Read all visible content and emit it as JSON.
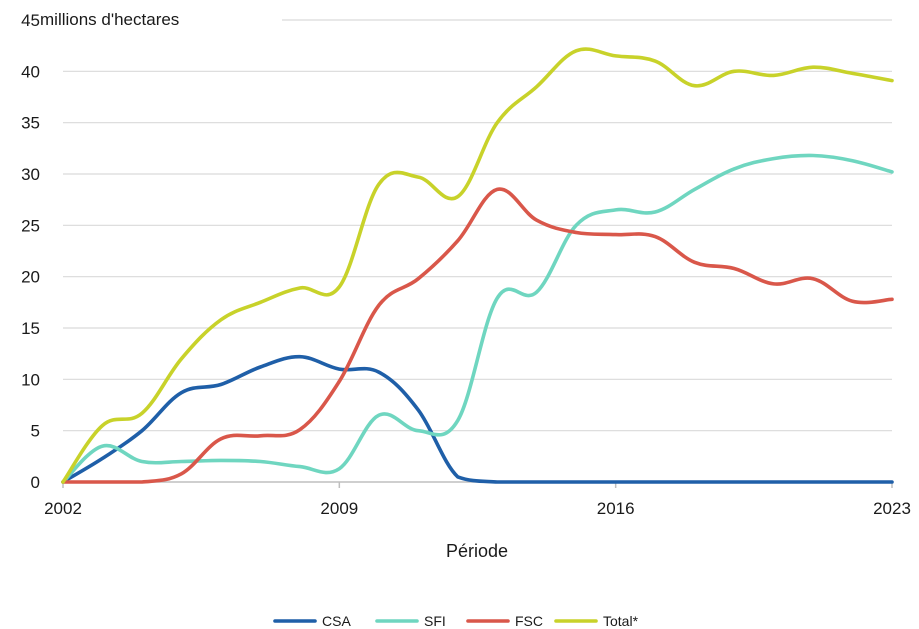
{
  "chart_data": {
    "type": "line",
    "unit_label": "millions d'hectares",
    "xlabel": "Période",
    "ylabel": "",
    "ylim": [
      0,
      45
    ],
    "yticks": [
      0,
      5,
      10,
      15,
      20,
      25,
      30,
      35,
      40,
      45
    ],
    "xlim": [
      2002,
      2023
    ],
    "xticks": [
      2002,
      2009,
      2016,
      2023
    ],
    "grid": true,
    "legend_position": "bottom",
    "x": [
      2002,
      2003,
      2004,
      2005,
      2006,
      2007,
      2008,
      2009,
      2010,
      2011,
      2012,
      2013,
      2014,
      2015,
      2016,
      2017,
      2018,
      2019,
      2020,
      2021,
      2022,
      2023
    ],
    "series": [
      {
        "name": "CSA",
        "color": "#1f5fa8",
        "values": [
          0,
          2.3,
          5.0,
          8.7,
          9.5,
          11.2,
          12.2,
          11.0,
          10.7,
          7.0,
          0.5,
          0,
          0,
          0,
          0,
          0,
          0,
          0,
          0,
          0,
          0,
          0
        ]
      },
      {
        "name": "SFI",
        "color": "#6fd6c0",
        "values": [
          0,
          3.5,
          2.0,
          2.0,
          2.1,
          2.0,
          1.5,
          1.3,
          6.5,
          5.0,
          6.0,
          17.9,
          18.5,
          25.0,
          26.5,
          26.3,
          28.5,
          30.5,
          31.5,
          31.8,
          31.3,
          30.2
        ]
      },
      {
        "name": "FSC",
        "color": "#d9574a",
        "values": [
          0,
          0,
          0,
          0.8,
          4.2,
          4.5,
          5.1,
          9.8,
          17.2,
          19.8,
          23.5,
          28.5,
          25.5,
          24.3,
          24.1,
          23.9,
          21.4,
          20.8,
          19.3,
          19.8,
          17.6,
          17.8
        ]
      },
      {
        "name": "Total*",
        "color": "#c8d22a",
        "values": [
          0,
          5.5,
          6.7,
          12.0,
          15.8,
          17.5,
          18.9,
          19.0,
          29.0,
          29.7,
          27.8,
          35.0,
          38.5,
          42.0,
          41.5,
          41.0,
          38.6,
          40.0,
          39.6,
          40.4,
          39.8,
          39.1
        ]
      }
    ]
  }
}
